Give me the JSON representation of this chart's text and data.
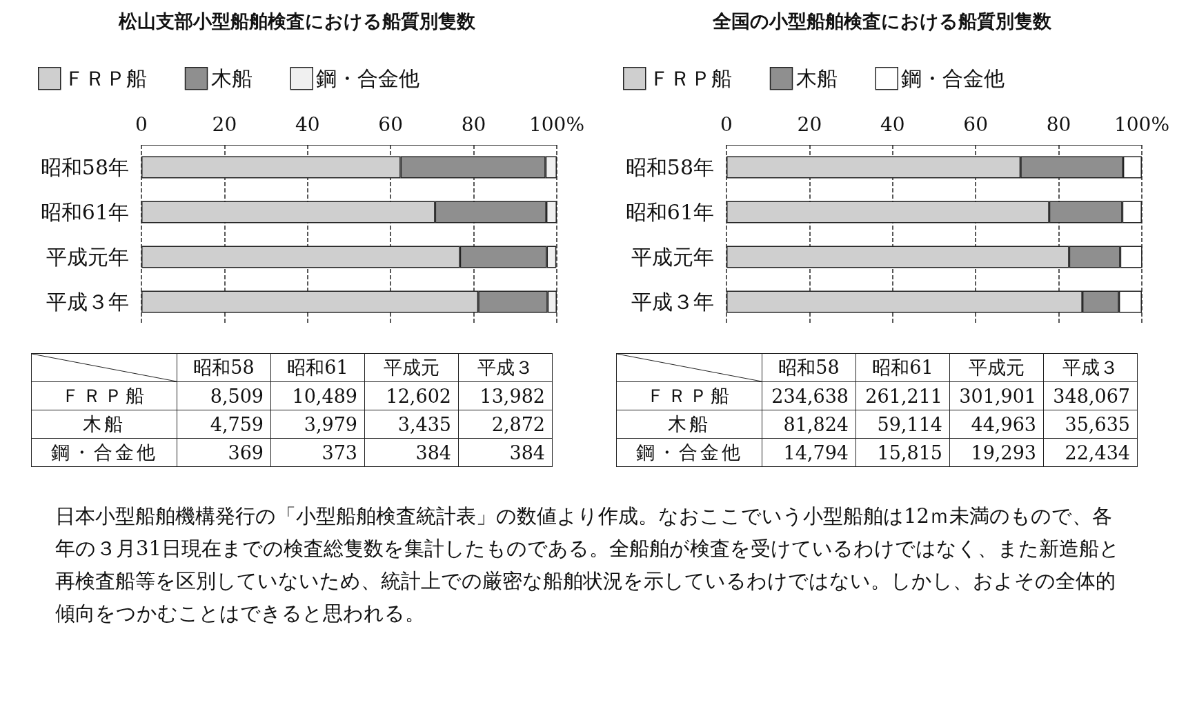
{
  "chart_data": [
    {
      "type": "bar",
      "title": "松山支部小型船舶検査における船質別隻数",
      "orientation": "horizontal",
      "stacked": true,
      "legend": "top left",
      "grid": "x",
      "categories": [
        "昭和58年",
        "昭和61年",
        "平成元年",
        "平成３年"
      ],
      "xlim": [
        0,
        100
      ],
      "xticks": [
        0,
        20,
        40,
        60,
        80,
        {
          "value": 100,
          "label": "100%"
        }
      ],
      "annotations": [
        "昭和58",
        "昭和61",
        "平成元",
        "平成３",
        "ＦＲＰ船",
        "8,509",
        "10,489",
        "12,602",
        "13,982",
        "木船",
        "4,759",
        "3,979",
        "3,435",
        "2,872",
        "鋼・合金他",
        "369",
        "373",
        "384",
        "384"
      ],
      "series": [
        {
          "name": "ＦＲＰ船",
          "color": "#cfcfcf",
          "values": [
            62.4,
            70.7,
            76.7,
            81.1
          ]
        },
        {
          "name": "木船",
          "color": "#8f8f8f",
          "values": [
            34.9,
            26.8,
            20.9,
            16.7
          ]
        },
        {
          "name": "鋼・合金他",
          "color": "#f0f0f0",
          "values": [
            2.7,
            2.5,
            2.3,
            2.2
          ]
        }
      ]
    },
    {
      "type": "bar",
      "title": "全国の小型船舶検査における船質別隻数",
      "orientation": "horizontal",
      "stacked": true,
      "legend": "top left",
      "grid": "x",
      "categories": [
        "昭和58年",
        "昭和61年",
        "平成元年",
        "平成３年"
      ],
      "xlim": [
        0,
        100
      ],
      "xticks": [
        0,
        20,
        40,
        60,
        80,
        {
          "value": 100,
          "label": "100%"
        }
      ],
      "annotations": [
        "昭和58",
        "昭和61",
        "平成元",
        "平成３",
        "ＦＲＰ船",
        "234,638",
        "261,211",
        "301,901",
        "348,067",
        "木船",
        "81,824",
        "59,114",
        "44,963",
        "35,635",
        "鋼・合金他",
        "14,794",
        "15,815",
        "19,293",
        "22,434"
      ],
      "series": [
        {
          "name": "ＦＲＰ船",
          "color": "#cfcfcf",
          "values": [
            70.8,
            77.7,
            82.5,
            85.7
          ]
        },
        {
          "name": "木船",
          "color": "#8f8f8f",
          "values": [
            24.7,
            17.6,
            12.3,
            8.8
          ]
        },
        {
          "name": "鋼・合金他",
          "color": "#ffffff",
          "values": [
            4.5,
            4.7,
            5.3,
            5.5
          ]
        }
      ]
    },
    {
      "type": "other",
      "annotations": [
        "日本小型船舶機構発行の「小型船舶検査統計表」の数値より作成。なおここでいう小型船舶は12ｍ未満のもので、各年の３月31日現在までの検査総隻数を集計したものである。全船舶が検査を受けているわけではなく、また新造船と再検査船等を区別していないため、統計上での厳密な船舶状況を示しているわけではない。しかし、およその全体的傾向をつかむことはできると思われる。"
      ]
    }
  ]
}
